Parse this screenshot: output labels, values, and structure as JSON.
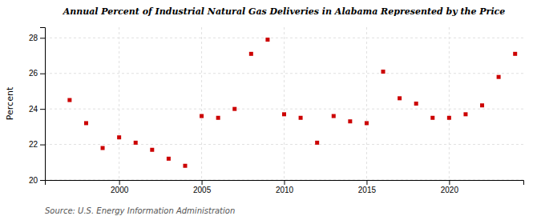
{
  "chart_data": {
    "type": "scatter",
    "title": "Annual Percent of Industrial Natural Gas Deliveries in Alabama Represented by the Price",
    "ylabel": "Percent",
    "source": "Source: U.S. Energy Information Administration",
    "color": "#cc0000",
    "marker": "square",
    "grid": true,
    "xlim": [
      1995.5,
      2024.5
    ],
    "ylim": [
      20,
      28.6
    ],
    "xticks": [
      2000,
      2005,
      2010,
      2015,
      2020
    ],
    "yticks": [
      20,
      22,
      24,
      26,
      28
    ],
    "x": [
      1997,
      1998,
      1999,
      2000,
      2001,
      2002,
      2003,
      2004,
      2005,
      2006,
      2007,
      2008,
      2009,
      2010,
      2011,
      2012,
      2013,
      2014,
      2015,
      2016,
      2017,
      2018,
      2019,
      2020,
      2021,
      2022,
      2023,
      2024
    ],
    "values": [
      24.5,
      23.2,
      21.8,
      22.4,
      22.1,
      21.7,
      21.2,
      20.8,
      23.6,
      23.5,
      24.0,
      27.1,
      27.9,
      23.7,
      23.5,
      22.1,
      23.6,
      23.3,
      23.2,
      26.1,
      24.6,
      24.3,
      23.5,
      23.5,
      23.7,
      24.2,
      25.8,
      27.1
    ]
  }
}
